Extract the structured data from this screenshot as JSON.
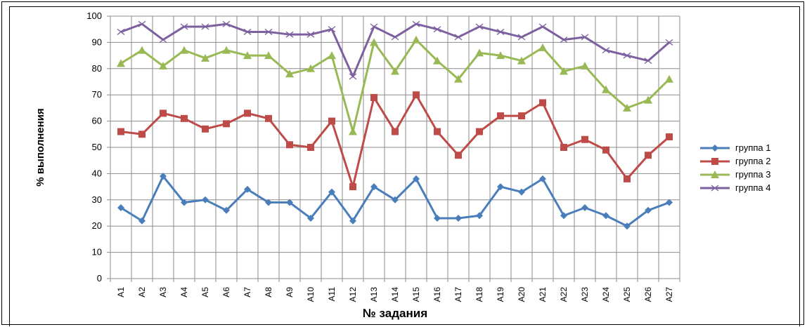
{
  "chart_data": {
    "type": "line",
    "title": "",
    "xlabel": "№ задания",
    "ylabel": "% выполнения",
    "ylim": [
      0,
      100
    ],
    "yticks": [
      0,
      10,
      20,
      30,
      40,
      50,
      60,
      70,
      80,
      90,
      100
    ],
    "grid": true,
    "legend_position": "right",
    "categories": [
      "A1",
      "A2",
      "A3",
      "A4",
      "A5",
      "A6",
      "A7",
      "A8",
      "A9",
      "A10",
      "A11",
      "A12",
      "A13",
      "A14",
      "A15",
      "A16",
      "A17",
      "A18",
      "A19",
      "A20",
      "A21",
      "A22",
      "A23",
      "A24",
      "A25",
      "A26",
      "A27"
    ],
    "series": [
      {
        "name": "группа 1",
        "color": "#4A7EBB",
        "marker": "diamond",
        "values": [
          27,
          22,
          39,
          29,
          30,
          26,
          34,
          29,
          29,
          23,
          33,
          22,
          35,
          30,
          38,
          23,
          23,
          24,
          35,
          33,
          38,
          24,
          27,
          24,
          20,
          26,
          29
        ]
      },
      {
        "name": "группа 2",
        "color": "#BE4B48",
        "marker": "square",
        "values": [
          56,
          55,
          63,
          61,
          57,
          59,
          63,
          61,
          51,
          50,
          60,
          35,
          69,
          56,
          70,
          56,
          47,
          56,
          62,
          62,
          67,
          50,
          53,
          49,
          38,
          47,
          54
        ]
      },
      {
        "name": "группа 3",
        "color": "#98B954",
        "marker": "triangle",
        "values": [
          82,
          87,
          81,
          87,
          84,
          87,
          85,
          85,
          78,
          80,
          85,
          56,
          90,
          79,
          91,
          83,
          76,
          86,
          85,
          83,
          88,
          79,
          81,
          72,
          65,
          68,
          76
        ]
      },
      {
        "name": "группа 4",
        "color": "#7D60A0",
        "marker": "x",
        "values": [
          94,
          97,
          91,
          96,
          96,
          97,
          94,
          94,
          93,
          93,
          95,
          77,
          96,
          92,
          97,
          95,
          92,
          96,
          94,
          92,
          96,
          91,
          92,
          87,
          85,
          83,
          90
        ]
      }
    ]
  }
}
